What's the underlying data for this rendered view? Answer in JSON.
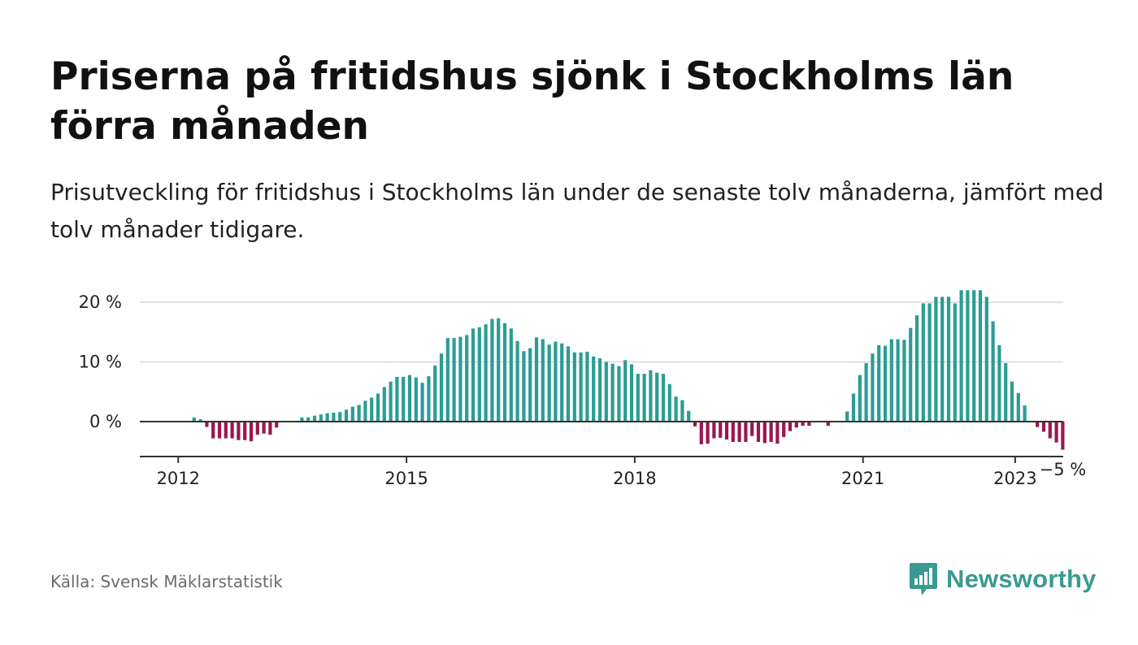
{
  "header": {
    "title": "Priserna på fritidshus sjönk i Stockholms län förra månaden",
    "subtitle": "Prisutveckling för fritidshus i Stockholms län under de senaste tolv månaderna, jämfört med tolv månader tidigare."
  },
  "footer": {
    "source": "Källa: Svensk Mäklarstatistik",
    "brand": "Newsworthy",
    "brand_icon": "newsworthy-bar-chart-bubble-icon"
  },
  "colors": {
    "positive": "#2a9d95",
    "negative": "#9b1650",
    "brand": "#3a9a91",
    "grid": "#d9d9d9",
    "axis": "#333333"
  },
  "chart_data": {
    "type": "bar",
    "title": "Priserna på fritidshus sjönk i Stockholms län förra månaden",
    "subtitle": "Prisutveckling för fritidshus i Stockholms län under de senaste tolv månaderna, jämfört med tolv månader tidigare.",
    "xlabel": "",
    "ylabel": "",
    "x_start": "2011-07",
    "x_end": "2023-08",
    "x_ticks": [
      "2012",
      "2015",
      "2018",
      "2021",
      "2023"
    ],
    "y_ticks": [
      {
        "value": 20,
        "label": "20 %"
      },
      {
        "value": 10,
        "label": "10 %"
      },
      {
        "value": 0,
        "label": "0 %"
      }
    ],
    "ylim": [
      -5.8,
      21.5
    ],
    "grid": true,
    "legend": "none",
    "end_label": "−5 %",
    "series": [
      {
        "values": [
          {
            "x": "2012-03",
            "y": 0.7
          },
          {
            "x": "2012-04",
            "y": 0.4
          },
          {
            "x": "2012-05",
            "y": -0.9
          },
          {
            "x": "2012-06",
            "y": -2.8
          },
          {
            "x": "2012-07",
            "y": -2.8
          },
          {
            "x": "2012-08",
            "y": -2.8
          },
          {
            "x": "2012-09",
            "y": -2.8
          },
          {
            "x": "2012-10",
            "y": -3.1
          },
          {
            "x": "2012-11",
            "y": -3.1
          },
          {
            "x": "2012-12",
            "y": -3.3
          },
          {
            "x": "2013-01",
            "y": -2.2
          },
          {
            "x": "2013-02",
            "y": -2.0
          },
          {
            "x": "2013-03",
            "y": -2.2
          },
          {
            "x": "2013-04",
            "y": -1.0
          },
          {
            "x": "2013-05",
            "y": 0
          },
          {
            "x": "2013-06",
            "y": 0
          },
          {
            "x": "2013-07",
            "y": 0
          },
          {
            "x": "2013-08",
            "y": 0.7
          },
          {
            "x": "2013-09",
            "y": 0.7
          },
          {
            "x": "2013-10",
            "y": 1.0
          },
          {
            "x": "2013-11",
            "y": 1.2
          },
          {
            "x": "2013-12",
            "y": 1.4
          },
          {
            "x": "2014-01",
            "y": 1.5
          },
          {
            "x": "2014-02",
            "y": 1.6
          },
          {
            "x": "2014-03",
            "y": 2.0
          },
          {
            "x": "2014-04",
            "y": 2.5
          },
          {
            "x": "2014-05",
            "y": 2.8
          },
          {
            "x": "2014-06",
            "y": 3.5
          },
          {
            "x": "2014-07",
            "y": 4.0
          },
          {
            "x": "2014-08",
            "y": 4.7
          },
          {
            "x": "2014-09",
            "y": 5.8
          },
          {
            "x": "2014-10",
            "y": 6.7
          },
          {
            "x": "2014-11",
            "y": 7.5
          },
          {
            "x": "2014-12",
            "y": 7.5
          },
          {
            "x": "2015-01",
            "y": 7.8
          },
          {
            "x": "2015-02",
            "y": 7.4
          },
          {
            "x": "2015-03",
            "y": 6.5
          },
          {
            "x": "2015-04",
            "y": 7.6
          },
          {
            "x": "2015-05",
            "y": 9.4
          },
          {
            "x": "2015-06",
            "y": 11.4
          },
          {
            "x": "2015-07",
            "y": 14.0
          },
          {
            "x": "2015-08",
            "y": 14.0
          },
          {
            "x": "2015-09",
            "y": 14.2
          },
          {
            "x": "2015-10",
            "y": 14.5
          },
          {
            "x": "2015-11",
            "y": 15.6
          },
          {
            "x": "2015-12",
            "y": 15.8
          },
          {
            "x": "2016-01",
            "y": 16.3
          },
          {
            "x": "2016-02",
            "y": 17.2
          },
          {
            "x": "2016-03",
            "y": 17.3
          },
          {
            "x": "2016-04",
            "y": 16.5
          },
          {
            "x": "2016-05",
            "y": 15.6
          },
          {
            "x": "2016-06",
            "y": 13.5
          },
          {
            "x": "2016-07",
            "y": 11.8
          },
          {
            "x": "2016-08",
            "y": 12.3
          },
          {
            "x": "2016-09",
            "y": 14.1
          },
          {
            "x": "2016-10",
            "y": 13.8
          },
          {
            "x": "2016-11",
            "y": 12.9
          },
          {
            "x": "2016-12",
            "y": 13.4
          },
          {
            "x": "2017-01",
            "y": 13.1
          },
          {
            "x": "2017-02",
            "y": 12.6
          },
          {
            "x": "2017-03",
            "y": 11.6
          },
          {
            "x": "2017-04",
            "y": 11.6
          },
          {
            "x": "2017-05",
            "y": 11.7
          },
          {
            "x": "2017-06",
            "y": 10.9
          },
          {
            "x": "2017-07",
            "y": 10.6
          },
          {
            "x": "2017-08",
            "y": 10.0
          },
          {
            "x": "2017-09",
            "y": 9.7
          },
          {
            "x": "2017-10",
            "y": 9.3
          },
          {
            "x": "2017-11",
            "y": 10.3
          },
          {
            "x": "2017-12",
            "y": 9.6
          },
          {
            "x": "2018-01",
            "y": 8.0
          },
          {
            "x": "2018-02",
            "y": 8.0
          },
          {
            "x": "2018-03",
            "y": 8.6
          },
          {
            "x": "2018-04",
            "y": 8.2
          },
          {
            "x": "2018-05",
            "y": 8.0
          },
          {
            "x": "2018-06",
            "y": 6.3
          },
          {
            "x": "2018-07",
            "y": 4.2
          },
          {
            "x": "2018-08",
            "y": 3.6
          },
          {
            "x": "2018-09",
            "y": 1.8
          },
          {
            "x": "2018-10",
            "y": -0.8
          },
          {
            "x": "2018-11",
            "y": -3.8
          },
          {
            "x": "2018-12",
            "y": -3.7
          },
          {
            "x": "2019-01",
            "y": -2.8
          },
          {
            "x": "2019-02",
            "y": -2.7
          },
          {
            "x": "2019-03",
            "y": -3.0
          },
          {
            "x": "2019-04",
            "y": -3.4
          },
          {
            "x": "2019-05",
            "y": -3.4
          },
          {
            "x": "2019-06",
            "y": -3.4
          },
          {
            "x": "2019-07",
            "y": -2.4
          },
          {
            "x": "2019-08",
            "y": -3.4
          },
          {
            "x": "2019-09",
            "y": -3.6
          },
          {
            "x": "2019-10",
            "y": -3.4
          },
          {
            "x": "2019-11",
            "y": -3.7
          },
          {
            "x": "2019-12",
            "y": -2.6
          },
          {
            "x": "2020-01",
            "y": -1.6
          },
          {
            "x": "2020-02",
            "y": -1.0
          },
          {
            "x": "2020-03",
            "y": -0.7
          },
          {
            "x": "2020-04",
            "y": -0.7
          },
          {
            "x": "2020-05",
            "y": 0
          },
          {
            "x": "2020-06",
            "y": 0
          },
          {
            "x": "2020-07",
            "y": -0.7
          },
          {
            "x": "2020-08",
            "y": 0
          },
          {
            "x": "2020-09",
            "y": 0
          },
          {
            "x": "2020-10",
            "y": 1.7
          },
          {
            "x": "2020-11",
            "y": 4.7
          },
          {
            "x": "2020-12",
            "y": 7.8
          },
          {
            "x": "2021-01",
            "y": 9.8
          },
          {
            "x": "2021-02",
            "y": 11.4
          },
          {
            "x": "2021-03",
            "y": 12.8
          },
          {
            "x": "2021-04",
            "y": 12.7
          },
          {
            "x": "2021-05",
            "y": 13.8
          },
          {
            "x": "2021-06",
            "y": 13.8
          },
          {
            "x": "2021-07",
            "y": 13.7
          },
          {
            "x": "2021-08",
            "y": 15.7
          },
          {
            "x": "2021-09",
            "y": 17.8
          },
          {
            "x": "2021-10",
            "y": 19.8
          },
          {
            "x": "2021-11",
            "y": 19.8
          },
          {
            "x": "2021-12",
            "y": 20.9
          },
          {
            "x": "2022-01",
            "y": 20.9
          },
          {
            "x": "2022-02",
            "y": 20.9
          },
          {
            "x": "2022-03",
            "y": 19.8
          },
          {
            "x": "2022-04",
            "y": 22.0
          },
          {
            "x": "2022-05",
            "y": 22.0
          },
          {
            "x": "2022-06",
            "y": 22.0
          },
          {
            "x": "2022-07",
            "y": 22.0
          },
          {
            "x": "2022-08",
            "y": 20.9
          },
          {
            "x": "2022-09",
            "y": 16.8
          },
          {
            "x": "2022-10",
            "y": 12.8
          },
          {
            "x": "2022-11",
            "y": 9.8
          },
          {
            "x": "2022-12",
            "y": 6.7
          },
          {
            "x": "2023-01",
            "y": 4.8
          },
          {
            "x": "2023-02",
            "y": 2.7
          },
          {
            "x": "2023-03",
            "y": 0
          },
          {
            "x": "2023-04",
            "y": -0.9
          },
          {
            "x": "2023-05",
            "y": -1.7
          },
          {
            "x": "2023-06",
            "y": -2.8
          },
          {
            "x": "2023-07",
            "y": -3.5
          },
          {
            "x": "2023-08",
            "y": -4.7
          }
        ]
      }
    ]
  }
}
